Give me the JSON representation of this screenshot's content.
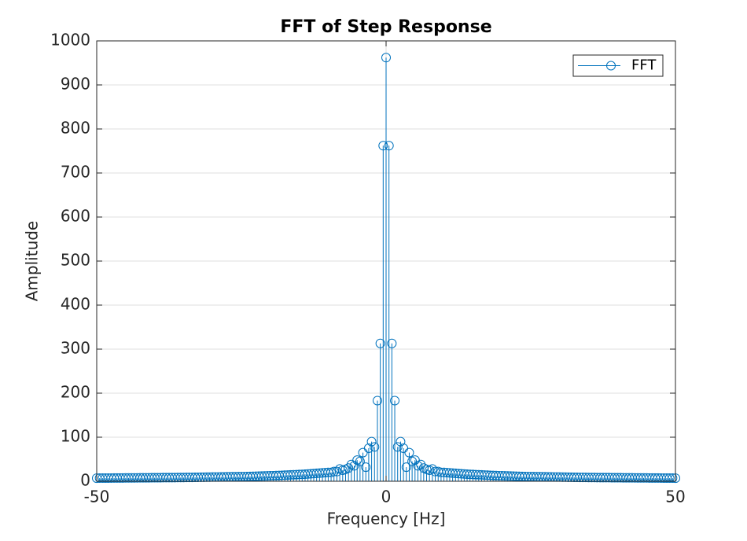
{
  "chart_data": {
    "type": "stem",
    "title": "FFT of Step Response",
    "xlabel": "Frequency [Hz]",
    "ylabel": "Amplitude",
    "x": [
      -50,
      -49.5,
      -49,
      -48.5,
      -48,
      -47.5,
      -47,
      -46.5,
      -46,
      -45.5,
      -45,
      -44.5,
      -44,
      -43.5,
      -43,
      -42.5,
      -42,
      -41.5,
      -41,
      -40.5,
      -40,
      -39.5,
      -39,
      -38.5,
      -38,
      -37.5,
      -37,
      -36.5,
      -36,
      -35.5,
      -35,
      -34.5,
      -34,
      -33.5,
      -33,
      -32.5,
      -32,
      -31.5,
      -31,
      -30.5,
      -30,
      -29.5,
      -29,
      -28.5,
      -28,
      -27.5,
      -27,
      -26.5,
      -26,
      -25.5,
      -25,
      -24.5,
      -24,
      -23.5,
      -23,
      -22.5,
      -22,
      -21.5,
      -21,
      -20.5,
      -20,
      -19.5,
      -19,
      -18.5,
      -18,
      -17.5,
      -17,
      -16.5,
      -16,
      -15.5,
      -15,
      -14.5,
      -14,
      -13.5,
      -13,
      -12.5,
      -12,
      -11.5,
      -11,
      -10.5,
      -10,
      -9.5,
      -9,
      -8.5,
      -8,
      -7.5,
      -7,
      -6.5,
      -6,
      -5.5,
      -5,
      -4.5,
      -4,
      -3.5,
      -3,
      -2.5,
      -2,
      -1.5,
      -1,
      -0.5,
      0,
      0.5,
      1,
      1.5,
      2,
      2.5,
      3,
      3.5,
      4,
      4.5,
      5,
      5.5,
      6,
      6.5,
      7,
      7.5,
      8,
      8.5,
      9,
      9.5,
      10,
      10.5,
      11,
      11.5,
      12,
      12.5,
      13,
      13.5,
      14,
      14.5,
      15,
      15.5,
      16,
      16.5,
      17,
      17.5,
      18,
      18.5,
      19,
      19.5,
      20,
      20.5,
      21,
      21.5,
      22,
      22.5,
      23,
      23.5,
      24,
      24.5,
      25,
      25.5,
      26,
      26.5,
      27,
      27.5,
      28,
      28.5,
      29,
      29.5,
      30,
      30.5,
      31,
      31.5,
      32,
      32.5,
      33,
      33.5,
      34,
      34.5,
      35,
      35.5,
      36,
      36.5,
      37,
      37.5,
      38,
      38.5,
      39,
      39.5,
      40,
      40.5,
      41,
      41.5,
      42,
      42.5,
      43,
      43.5,
      44,
      44.5,
      45,
      45.5,
      46,
      46.5,
      47,
      47.5,
      48,
      48.5,
      49,
      49.5,
      50
    ],
    "series": [
      {
        "name": "FFT",
        "color": "#0072bd",
        "values": [
          7,
          7.05,
          7.1,
          7.15,
          7.2,
          7.25,
          7.3,
          7.35,
          7.4,
          7.45,
          7.5,
          7.55,
          7.6,
          7.65,
          7.7,
          7.75,
          7.8,
          7.85,
          7.9,
          7.95,
          8,
          8.05,
          8.1,
          8.15,
          8.2,
          8.25,
          8.3,
          8.35,
          8.4,
          8.45,
          8.5,
          8.6,
          8.7,
          8.8,
          8.9,
          9,
          9.1,
          9.2,
          9.3,
          9.4,
          9.5,
          9.6,
          9.7,
          9.8,
          9.9,
          10,
          10.1,
          10.2,
          10.3,
          10.4,
          10.5,
          10.6,
          10.8,
          11,
          11.2,
          11.4,
          11.6,
          11.8,
          12,
          12.2,
          12.4,
          12.6,
          12.9,
          13.2,
          13.5,
          13.8,
          14.1,
          14.4,
          14.7,
          15,
          15.4,
          15.7,
          16,
          16.5,
          17,
          17.5,
          18,
          18.5,
          19,
          19.5,
          20,
          20,
          22,
          22,
          28,
          25,
          27,
          30,
          38,
          35,
          48,
          45,
          65,
          32,
          75,
          90,
          78,
          183,
          313,
          762,
          962,
          762,
          313,
          183,
          78,
          90,
          75,
          32,
          65,
          45,
          48,
          35,
          38,
          30,
          27,
          25,
          28,
          22,
          22,
          20,
          20,
          19.5,
          19,
          18.5,
          18,
          17.5,
          17,
          16.5,
          16,
          15.7,
          15.4,
          15,
          14.7,
          14.4,
          14.1,
          13.8,
          13.5,
          13.2,
          12.9,
          12.6,
          12.4,
          12.2,
          12,
          11.8,
          11.6,
          11.4,
          11.2,
          11,
          10.8,
          10.6,
          10.5,
          10.4,
          10.3,
          10.2,
          10.1,
          10,
          9.9,
          9.8,
          9.7,
          9.6,
          9.5,
          9.4,
          9.3,
          9.2,
          9.1,
          9,
          8.9,
          8.8,
          8.7,
          8.6,
          8.5,
          8.45,
          8.4,
          8.35,
          8.3,
          8.25,
          8.2,
          8.15,
          8.1,
          8.05,
          8,
          7.95,
          7.9,
          7.85,
          7.8,
          7.75,
          7.7,
          7.65,
          7.6,
          7.55,
          7.5,
          7.45,
          7.4,
          7.35,
          7.3,
          7.25,
          7.2,
          7.15,
          7.1,
          7.05,
          7
        ]
      }
    ],
    "xlim": [
      -50,
      50
    ],
    "xticks": [
      -50,
      0,
      50
    ],
    "ylim": [
      0,
      1000
    ],
    "yticks": [
      0,
      100,
      200,
      300,
      400,
      500,
      600,
      700,
      800,
      900,
      1000
    ],
    "grid": true,
    "legend": "upper right"
  }
}
